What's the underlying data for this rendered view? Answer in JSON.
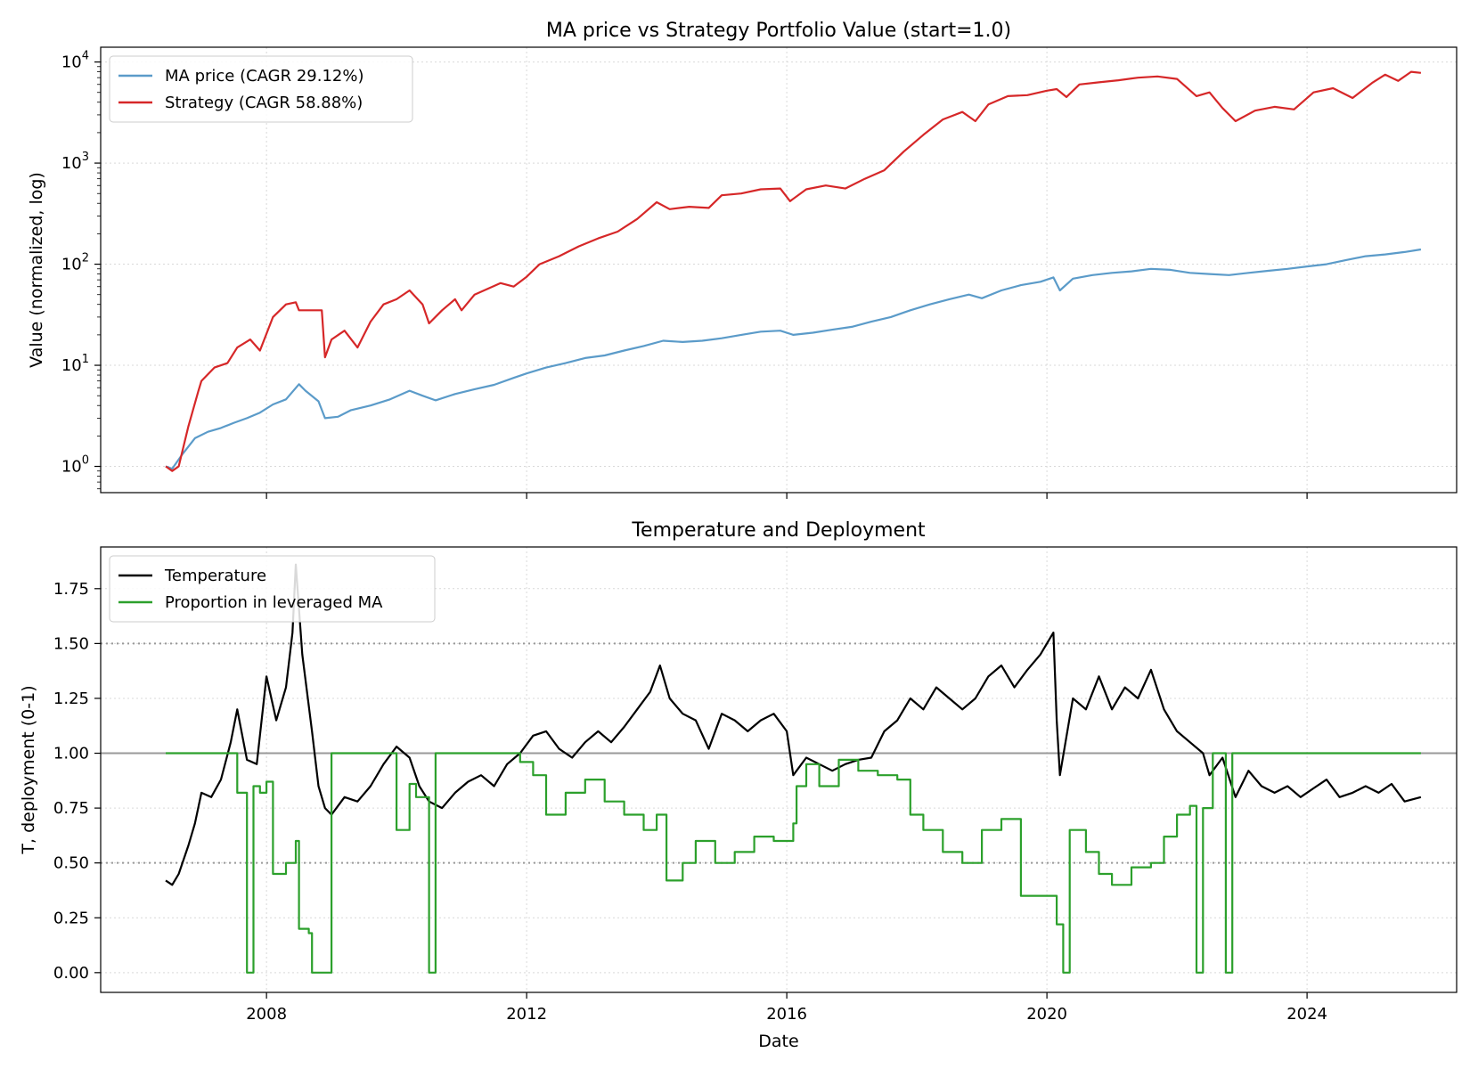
{
  "chart_data": [
    {
      "type": "line",
      "title": "MA price vs Strategy Portfolio Value (start=1.0)",
      "xlabel": "",
      "ylabel": "Value (normalized, log)",
      "yscale": "log",
      "ylim": [
        0.55,
        14000
      ],
      "xlim": [
        2005.45,
        2026.3
      ],
      "xticks": [
        2008,
        2012,
        2016,
        2020,
        2024
      ],
      "yticks": [
        {
          "value": 1,
          "base": "10",
          "exp": "0"
        },
        {
          "value": 10,
          "base": "10",
          "exp": "1"
        },
        {
          "value": 100,
          "base": "10",
          "exp": "2"
        },
        {
          "value": 1000,
          "base": "10",
          "exp": "3"
        },
        {
          "value": 10000,
          "base": "10",
          "exp": "4"
        }
      ],
      "grid": true,
      "legend": "upper-left",
      "series": [
        {
          "name": "MA price (CAGR 29.12%)",
          "color": "#5b9bc9",
          "x": [
            2006.45,
            2006.55,
            2006.7,
            2006.9,
            2007.1,
            2007.3,
            2007.5,
            2007.7,
            2007.9,
            2008.1,
            2008.3,
            2008.5,
            2008.6,
            2008.8,
            2008.9,
            2009.1,
            2009.3,
            2009.6,
            2009.9,
            2010.2,
            2010.4,
            2010.6,
            2010.9,
            2011.2,
            2011.5,
            2011.8,
            2012.0,
            2012.3,
            2012.6,
            2012.9,
            2013.2,
            2013.5,
            2013.8,
            2014.1,
            2014.4,
            2014.7,
            2015.0,
            2015.3,
            2015.6,
            2015.9,
            2016.1,
            2016.4,
            2016.7,
            2017.0,
            2017.3,
            2017.6,
            2017.9,
            2018.2,
            2018.5,
            2018.8,
            2019.0,
            2019.3,
            2019.6,
            2019.9,
            2020.1,
            2020.2,
            2020.4,
            2020.7,
            2021.0,
            2021.3,
            2021.6,
            2021.9,
            2022.2,
            2022.5,
            2022.8,
            2023.1,
            2023.4,
            2023.7,
            2024.0,
            2024.3,
            2024.6,
            2024.9,
            2025.2,
            2025.5,
            2025.75
          ],
          "y": [
            1.0,
            0.95,
            1.3,
            1.9,
            2.2,
            2.4,
            2.7,
            3.0,
            3.4,
            4.1,
            4.6,
            6.5,
            5.6,
            4.4,
            3.0,
            3.1,
            3.6,
            4.0,
            4.6,
            5.6,
            5.0,
            4.5,
            5.2,
            5.8,
            6.4,
            7.5,
            8.3,
            9.5,
            10.5,
            11.8,
            12.5,
            14.0,
            15.5,
            17.5,
            17.0,
            17.5,
            18.5,
            20.0,
            21.5,
            22.0,
            20.0,
            21.0,
            22.5,
            24.0,
            27.0,
            30.0,
            35.0,
            40.0,
            45.0,
            50.0,
            46.0,
            55.0,
            62.0,
            67.0,
            74.0,
            55.0,
            72.0,
            78.0,
            82.0,
            85.0,
            90.0,
            88.0,
            82.0,
            80.0,
            78.0,
            82.0,
            86.0,
            90.0,
            95.0,
            100.0,
            110.0,
            120.0,
            125.0,
            132.0,
            140.0
          ]
        },
        {
          "name": "Strategy (CAGR 58.88%)",
          "color": "#d62728",
          "x": [
            2006.45,
            2006.55,
            2006.65,
            2006.8,
            2006.95,
            2007.0,
            2007.2,
            2007.4,
            2007.55,
            2007.75,
            2007.9,
            2008.1,
            2008.3,
            2008.45,
            2008.5,
            2008.85,
            2008.9,
            2009.0,
            2009.2,
            2009.4,
            2009.6,
            2009.8,
            2010.0,
            2010.2,
            2010.4,
            2010.5,
            2010.7,
            2010.9,
            2011.0,
            2011.2,
            2011.4,
            2011.6,
            2011.8,
            2012.0,
            2012.2,
            2012.5,
            2012.8,
            2013.1,
            2013.4,
            2013.7,
            2014.0,
            2014.2,
            2014.5,
            2014.8,
            2015.0,
            2015.3,
            2015.6,
            2015.9,
            2016.05,
            2016.3,
            2016.6,
            2016.9,
            2017.2,
            2017.5,
            2017.8,
            2018.1,
            2018.4,
            2018.7,
            2018.9,
            2019.1,
            2019.4,
            2019.7,
            2020.0,
            2020.15,
            2020.3,
            2020.5,
            2020.8,
            2021.1,
            2021.4,
            2021.7,
            2022.0,
            2022.3,
            2022.5,
            2022.7,
            2022.9,
            2023.2,
            2023.5,
            2023.8,
            2024.1,
            2024.4,
            2024.7,
            2025.0,
            2025.2,
            2025.4,
            2025.6,
            2025.75
          ],
          "y": [
            1.0,
            0.9,
            1.0,
            2.5,
            5.5,
            7.0,
            9.5,
            10.5,
            15.0,
            18.0,
            14.0,
            30.0,
            40.0,
            42.0,
            35.0,
            35.0,
            12.0,
            18.0,
            22.0,
            15.0,
            27.0,
            40.0,
            45.0,
            55.0,
            40.0,
            26.0,
            35.0,
            45.0,
            35.0,
            50.0,
            57.0,
            65.0,
            60.0,
            75.0,
            100.0,
            120.0,
            150.0,
            180.0,
            210.0,
            280.0,
            410.0,
            350.0,
            370.0,
            360.0,
            480.0,
            500.0,
            550.0,
            560.0,
            420.0,
            550.0,
            600.0,
            560.0,
            700.0,
            850.0,
            1300.0,
            1900.0,
            2700.0,
            3200.0,
            2600.0,
            3800.0,
            4600.0,
            4700.0,
            5200.0,
            5400.0,
            4500.0,
            6000.0,
            6300.0,
            6600.0,
            7000.0,
            7200.0,
            6800.0,
            4600.0,
            5000.0,
            3500.0,
            2600.0,
            3300.0,
            3600.0,
            3400.0,
            5000.0,
            5500.0,
            4400.0,
            6200.0,
            7500.0,
            6500.0,
            8000.0,
            7800.0
          ]
        }
      ]
    },
    {
      "type": "line",
      "title": "Temperature and Deployment",
      "xlabel": "Date",
      "ylabel": "T, deployment (0-1)",
      "ylim": [
        -0.09,
        1.94
      ],
      "xlim": [
        2005.45,
        2026.3
      ],
      "xticks": [
        2008,
        2012,
        2016,
        2020,
        2024
      ],
      "yticks": [
        0.0,
        0.25,
        0.5,
        0.75,
        1.0,
        1.25,
        1.5,
        1.75
      ],
      "reference_lines": [
        {
          "y": 1.0,
          "style": "solid",
          "color": "#999999"
        },
        {
          "y": 1.5,
          "style": "dotted",
          "color": "#999999"
        },
        {
          "y": 0.5,
          "style": "dotted",
          "color": "#999999"
        }
      ],
      "grid": true,
      "legend": "upper-left",
      "series": [
        {
          "name": "Temperature",
          "color": "#000000",
          "x": [
            2006.45,
            2006.55,
            2006.65,
            2006.8,
            2006.9,
            2007.0,
            2007.15,
            2007.3,
            2007.45,
            2007.55,
            2007.7,
            2007.85,
            2008.0,
            2008.15,
            2008.3,
            2008.4,
            2008.45,
            2008.55,
            2008.7,
            2008.8,
            2008.9,
            2009.0,
            2009.2,
            2009.4,
            2009.6,
            2009.8,
            2010.0,
            2010.2,
            2010.35,
            2010.5,
            2010.7,
            2010.9,
            2011.1,
            2011.3,
            2011.5,
            2011.7,
            2011.9,
            2012.1,
            2012.3,
            2012.5,
            2012.7,
            2012.9,
            2013.1,
            2013.3,
            2013.5,
            2013.7,
            2013.9,
            2014.05,
            2014.2,
            2014.4,
            2014.6,
            2014.8,
            2015.0,
            2015.2,
            2015.4,
            2015.6,
            2015.8,
            2016.0,
            2016.1,
            2016.3,
            2016.5,
            2016.7,
            2016.9,
            2017.1,
            2017.3,
            2017.5,
            2017.7,
            2017.9,
            2018.1,
            2018.3,
            2018.5,
            2018.7,
            2018.9,
            2019.1,
            2019.3,
            2019.5,
            2019.7,
            2019.9,
            2020.1,
            2020.15,
            2020.2,
            2020.4,
            2020.6,
            2020.8,
            2021.0,
            2021.2,
            2021.4,
            2021.6,
            2021.8,
            2022.0,
            2022.2,
            2022.4,
            2022.5,
            2022.7,
            2022.9,
            2023.1,
            2023.3,
            2023.5,
            2023.7,
            2023.9,
            2024.1,
            2024.3,
            2024.5,
            2024.7,
            2024.9,
            2025.1,
            2025.3,
            2025.5,
            2025.75
          ],
          "y": [
            0.42,
            0.4,
            0.45,
            0.58,
            0.68,
            0.82,
            0.8,
            0.88,
            1.05,
            1.2,
            0.97,
            0.95,
            1.35,
            1.15,
            1.3,
            1.55,
            1.86,
            1.45,
            1.1,
            0.85,
            0.75,
            0.72,
            0.8,
            0.78,
            0.85,
            0.95,
            1.03,
            0.98,
            0.85,
            0.78,
            0.75,
            0.82,
            0.87,
            0.9,
            0.85,
            0.95,
            1.0,
            1.08,
            1.1,
            1.02,
            0.98,
            1.05,
            1.1,
            1.05,
            1.12,
            1.2,
            1.28,
            1.4,
            1.25,
            1.18,
            1.15,
            1.02,
            1.18,
            1.15,
            1.1,
            1.15,
            1.18,
            1.1,
            0.9,
            0.98,
            0.95,
            0.92,
            0.95,
            0.97,
            0.98,
            1.1,
            1.15,
            1.25,
            1.2,
            1.3,
            1.25,
            1.2,
            1.25,
            1.35,
            1.4,
            1.3,
            1.38,
            1.45,
            1.55,
            1.15,
            0.9,
            1.25,
            1.2,
            1.35,
            1.2,
            1.3,
            1.25,
            1.38,
            1.2,
            1.1,
            1.05,
            1.0,
            0.9,
            0.98,
            0.8,
            0.92,
            0.85,
            0.82,
            0.85,
            0.8,
            0.84,
            0.88,
            0.8,
            0.82,
            0.85,
            0.82,
            0.86,
            0.78,
            0.8
          ]
        },
        {
          "name": "Proportion in leveraged MA",
          "color": "#2ca02c",
          "step": true,
          "x": [
            2006.45,
            2007.4,
            2007.55,
            2007.7,
            2007.8,
            2007.9,
            2008.0,
            2008.1,
            2008.3,
            2008.45,
            2008.5,
            2008.65,
            2008.7,
            2009.0,
            2009.95,
            2010.0,
            2010.2,
            2010.3,
            2010.5,
            2010.6,
            2011.6,
            2011.9,
            2012.1,
            2012.3,
            2012.6,
            2012.9,
            2013.2,
            2013.5,
            2013.8,
            2014.0,
            2014.15,
            2014.4,
            2014.6,
            2014.9,
            2015.2,
            2015.5,
            2015.8,
            2016.1,
            2016.15,
            2016.3,
            2016.5,
            2016.8,
            2017.1,
            2017.4,
            2017.7,
            2017.9,
            2018.1,
            2018.4,
            2018.7,
            2019.0,
            2019.3,
            2019.6,
            2019.8,
            2020.15,
            2020.25,
            2020.35,
            2020.6,
            2020.8,
            2021.0,
            2021.3,
            2021.6,
            2021.8,
            2022.0,
            2022.2,
            2022.3,
            2022.4,
            2022.55,
            2022.75,
            2022.85,
            2023.0,
            2025.75
          ],
          "y": [
            1.0,
            1.0,
            0.82,
            0.0,
            0.85,
            0.82,
            0.87,
            0.45,
            0.5,
            0.6,
            0.2,
            0.18,
            0.0,
            1.0,
            1.0,
            0.65,
            0.86,
            0.8,
            0.0,
            1.0,
            1.0,
            0.96,
            0.9,
            0.72,
            0.82,
            0.88,
            0.78,
            0.72,
            0.65,
            0.72,
            0.42,
            0.5,
            0.6,
            0.5,
            0.55,
            0.62,
            0.6,
            0.68,
            0.85,
            0.95,
            0.85,
            0.97,
            0.92,
            0.9,
            0.88,
            0.72,
            0.65,
            0.55,
            0.5,
            0.65,
            0.7,
            0.35,
            0.35,
            0.22,
            0.0,
            0.65,
            0.55,
            0.45,
            0.4,
            0.48,
            0.5,
            0.62,
            0.72,
            0.76,
            0.0,
            0.75,
            1.0,
            0.0,
            1.0,
            1.0,
            1.0
          ]
        }
      ]
    }
  ]
}
